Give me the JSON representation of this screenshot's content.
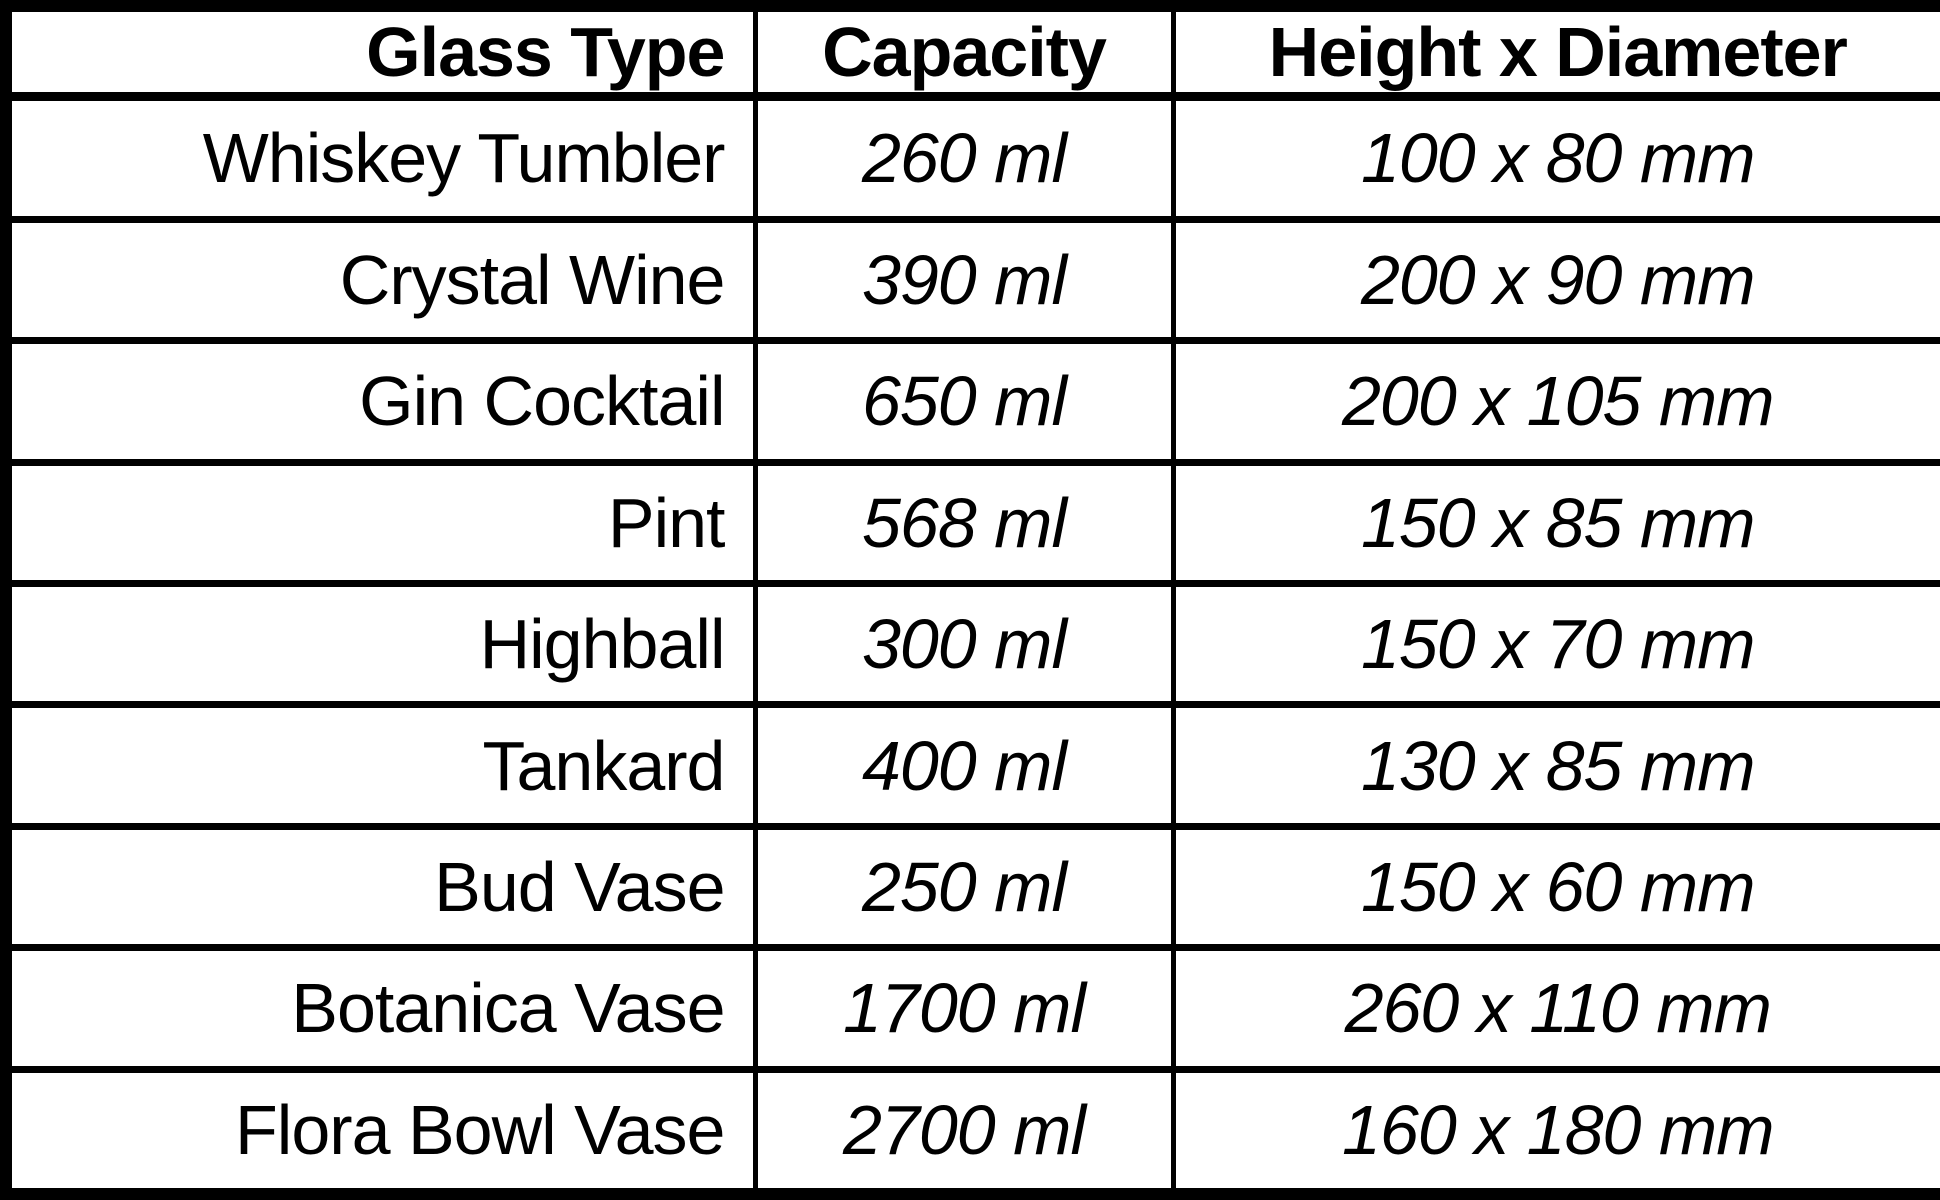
{
  "colors": {
    "border": "#000000",
    "background": "#ffffff",
    "text": "#000000"
  },
  "chart_data": {
    "type": "table",
    "columns": [
      "Glass Type",
      "Capacity",
      "Height x Diameter"
    ],
    "rows": [
      [
        "Whiskey Tumbler",
        "260 ml",
        "100 x 80 mm"
      ],
      [
        "Crystal Wine",
        "390 ml",
        "200 x 90 mm"
      ],
      [
        "Gin Cocktail",
        "650 ml",
        "200 x 105 mm"
      ],
      [
        "Pint",
        "568 ml",
        "150 x 85 mm"
      ],
      [
        "Highball",
        "300 ml",
        "150 x 70 mm"
      ],
      [
        "Tankard",
        "400 ml",
        "130 x 85 mm"
      ],
      [
        "Bud Vase",
        "250 ml",
        "150 x 60 mm"
      ],
      [
        "Botanica Vase",
        "1700 ml",
        "260 x 110 mm"
      ],
      [
        "Flora Bowl Vase",
        "2700 ml",
        "160 x 180 mm"
      ]
    ]
  }
}
